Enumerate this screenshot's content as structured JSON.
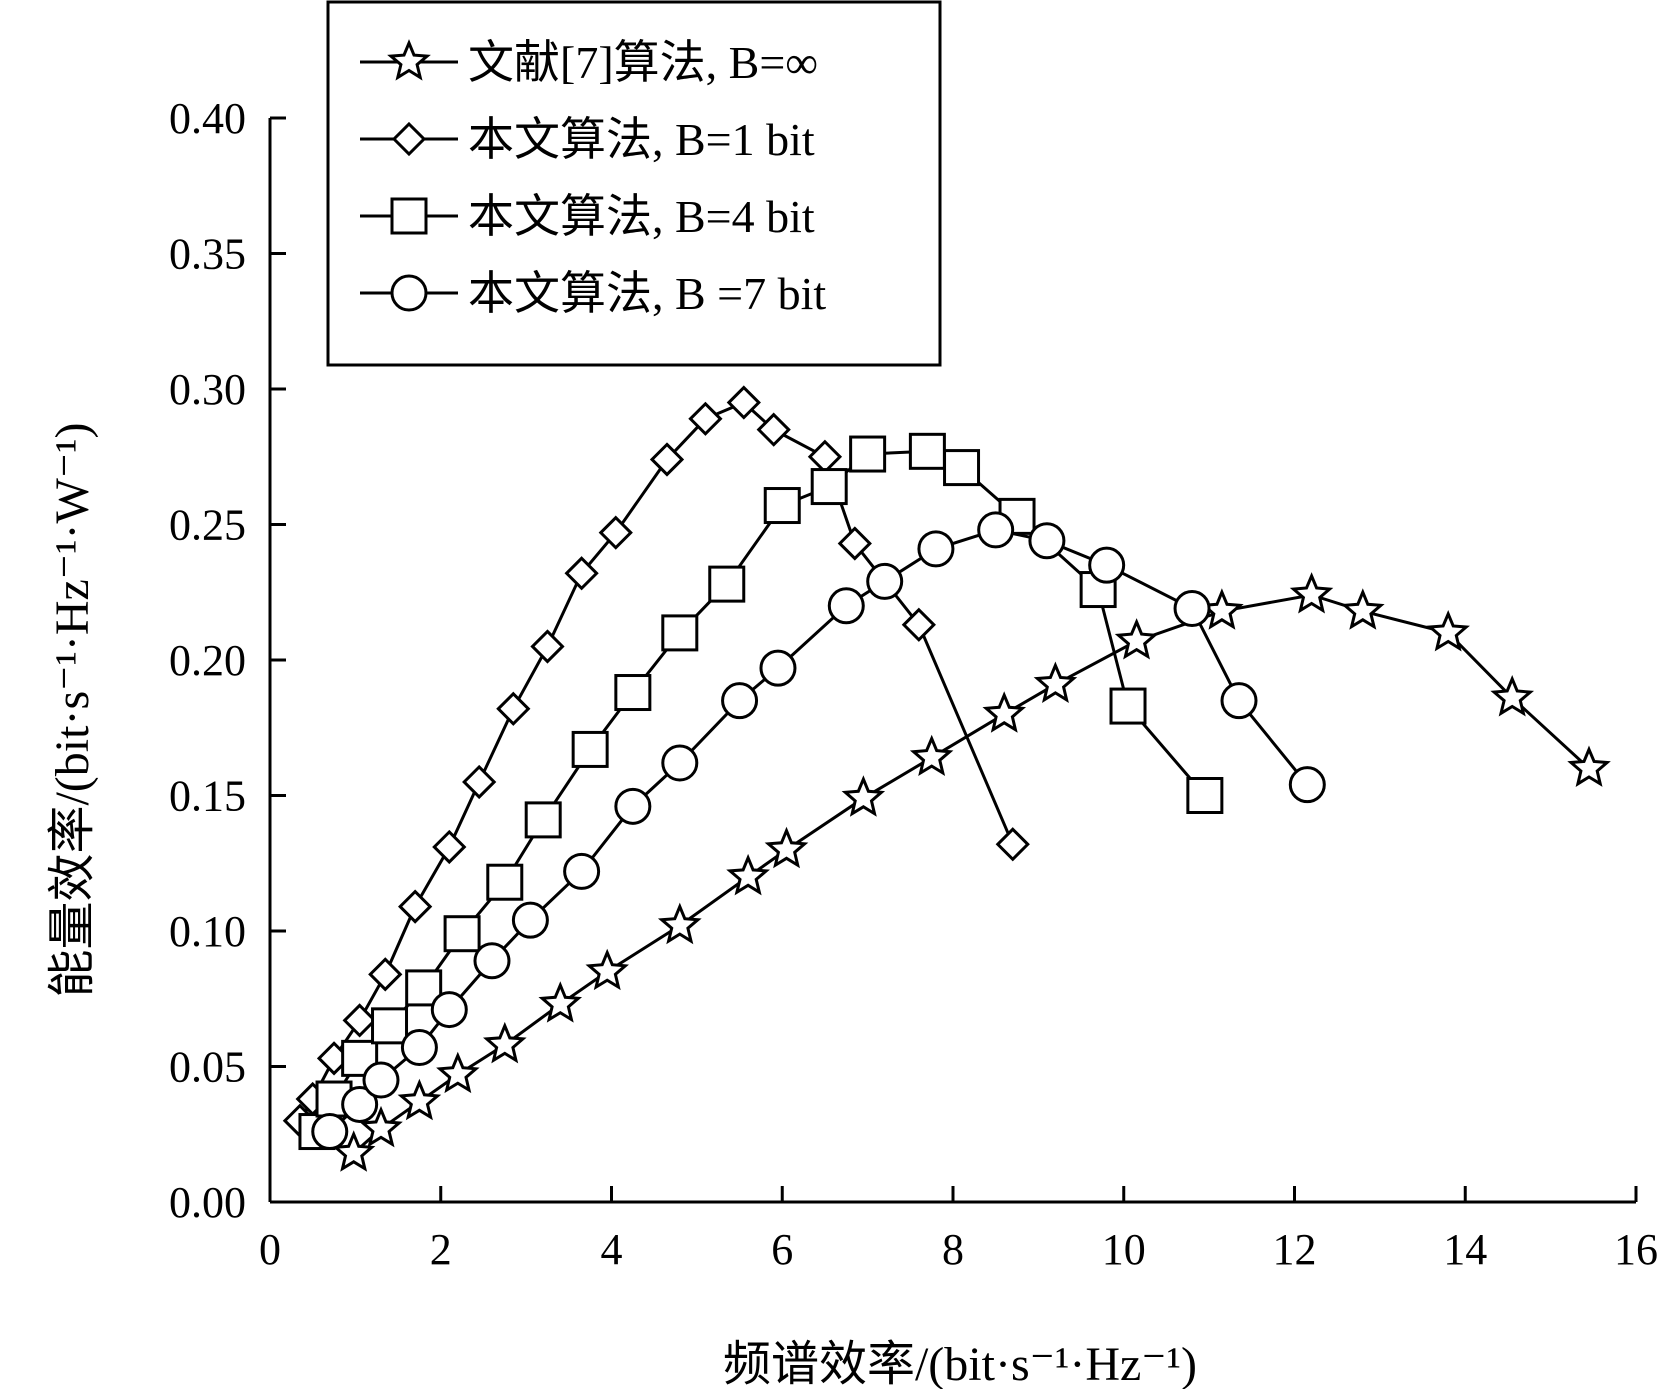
{
  "chart_data": {
    "type": "line",
    "title": "",
    "xlabel": "频谱效率/(bit·s⁻¹·Hz⁻¹)",
    "ylabel": "能量效率/(bit·s⁻¹·Hz⁻¹·W⁻¹)",
    "xlim": [
      0,
      16
    ],
    "ylim": [
      0,
      0.4
    ],
    "x_ticks": [
      "0",
      "2",
      "4",
      "6",
      "8",
      "10",
      "12",
      "14",
      "16"
    ],
    "y_ticks": [
      "0.00",
      "0.05",
      "0.10",
      "0.15",
      "0.20",
      "0.25",
      "0.30",
      "0.35",
      "0.40"
    ],
    "grid": false,
    "legend_position": "top-left",
    "series": [
      {
        "name": "文献[7]算法, B=∞",
        "marker": "star",
        "color": "#000000",
        "points": [
          [
            0.98,
            0.018
          ],
          [
            1.3,
            0.027
          ],
          [
            1.75,
            0.037
          ],
          [
            2.2,
            0.047
          ],
          [
            2.75,
            0.058
          ],
          [
            3.4,
            0.073
          ],
          [
            3.95,
            0.085
          ],
          [
            4.8,
            0.102
          ],
          [
            5.6,
            0.12
          ],
          [
            6.05,
            0.13
          ],
          [
            6.95,
            0.149
          ],
          [
            7.75,
            0.164
          ],
          [
            8.6,
            0.18
          ],
          [
            9.2,
            0.191
          ],
          [
            10.15,
            0.207
          ],
          [
            11.15,
            0.218
          ],
          [
            12.2,
            0.224
          ],
          [
            12.8,
            0.218
          ],
          [
            13.8,
            0.21
          ],
          [
            14.55,
            0.186
          ],
          [
            15.45,
            0.16
          ]
        ]
      },
      {
        "name": "本文算法, B=1 bit",
        "marker": "diamond",
        "color": "#000000",
        "points": [
          [
            0.35,
            0.03
          ],
          [
            0.5,
            0.038
          ],
          [
            0.75,
            0.053
          ],
          [
            1.05,
            0.067
          ],
          [
            1.35,
            0.084
          ],
          [
            1.7,
            0.109
          ],
          [
            2.1,
            0.131
          ],
          [
            2.45,
            0.155
          ],
          [
            2.85,
            0.182
          ],
          [
            3.25,
            0.205
          ],
          [
            3.65,
            0.232
          ],
          [
            4.05,
            0.247
          ],
          [
            4.65,
            0.274
          ],
          [
            5.1,
            0.289
          ],
          [
            5.55,
            0.295
          ],
          [
            5.9,
            0.285
          ],
          [
            6.5,
            0.275
          ],
          [
            6.85,
            0.243
          ],
          [
            7.6,
            0.213
          ],
          [
            8.7,
            0.132
          ]
        ]
      },
      {
        "name": "本文算法, B=4 bit",
        "marker": "square",
        "color": "#000000",
        "points": [
          [
            0.55,
            0.026
          ],
          [
            0.75,
            0.038
          ],
          [
            1.05,
            0.053
          ],
          [
            1.4,
            0.065
          ],
          [
            1.8,
            0.079
          ],
          [
            2.25,
            0.099
          ],
          [
            2.75,
            0.118
          ],
          [
            3.2,
            0.141
          ],
          [
            3.75,
            0.167
          ],
          [
            4.25,
            0.188
          ],
          [
            4.8,
            0.21
          ],
          [
            5.35,
            0.228
          ],
          [
            6.0,
            0.257
          ],
          [
            6.55,
            0.264
          ],
          [
            7.0,
            0.276
          ],
          [
            7.7,
            0.277
          ],
          [
            8.1,
            0.271
          ],
          [
            8.75,
            0.253
          ],
          [
            9.7,
            0.226
          ],
          [
            10.05,
            0.183
          ],
          [
            10.95,
            0.15
          ]
        ]
      },
      {
        "name": "本文算法, B =7 bit",
        "marker": "circle",
        "color": "#000000",
        "points": [
          [
            0.7,
            0.026
          ],
          [
            1.05,
            0.036
          ],
          [
            1.3,
            0.045
          ],
          [
            1.75,
            0.057
          ],
          [
            2.1,
            0.071
          ],
          [
            2.6,
            0.089
          ],
          [
            3.05,
            0.104
          ],
          [
            3.65,
            0.122
          ],
          [
            4.25,
            0.146
          ],
          [
            4.8,
            0.162
          ],
          [
            5.5,
            0.185
          ],
          [
            5.95,
            0.197
          ],
          [
            6.75,
            0.22
          ],
          [
            7.2,
            0.229
          ],
          [
            7.8,
            0.241
          ],
          [
            8.5,
            0.248
          ],
          [
            9.1,
            0.244
          ],
          [
            9.8,
            0.235
          ],
          [
            10.8,
            0.219
          ],
          [
            11.35,
            0.185
          ],
          [
            12.15,
            0.154
          ]
        ]
      }
    ]
  }
}
